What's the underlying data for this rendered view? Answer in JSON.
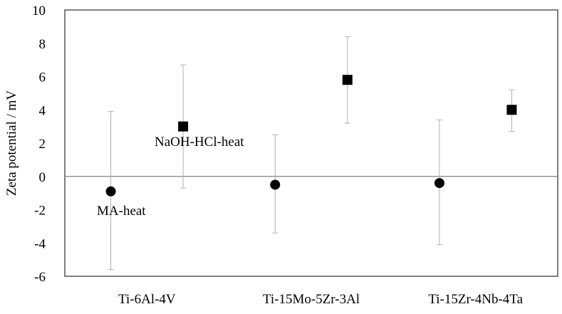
{
  "chart_data": {
    "type": "scatter",
    "title": "",
    "xlabel": "",
    "ylabel": "Zeta potential / mV",
    "ylim": [
      -6,
      10
    ],
    "yticks": [
      -6,
      -4,
      -2,
      0,
      2,
      4,
      6,
      8,
      10
    ],
    "ytick_labels": [
      "-6",
      "-4",
      "-2",
      "0",
      "2",
      "4",
      "6",
      "8",
      "10"
    ],
    "grid": false,
    "zero_line": true,
    "categories": [
      "Ti-6Al-4V",
      "Ti-15Mo-5Zr-3Al",
      "Ti-15Zr-4Nb-4Ta"
    ],
    "series": [
      {
        "marker": "circle",
        "color": "#000000",
        "values": [
          -0.9,
          -0.5,
          -0.4
        ],
        "err_low": [
          -5.6,
          -3.4,
          -4.1
        ],
        "err_high": [
          3.9,
          2.5,
          3.4
        ]
      },
      {
        "marker": "square",
        "color": "#000000",
        "values": [
          3.0,
          5.8,
          4.0
        ],
        "err_low": [
          -0.7,
          3.2,
          2.7
        ],
        "err_high": [
          6.7,
          8.4,
          5.2
        ]
      }
    ],
    "annotations": [
      "NaOH-HCl-heat",
      "MA-heat"
    ]
  }
}
